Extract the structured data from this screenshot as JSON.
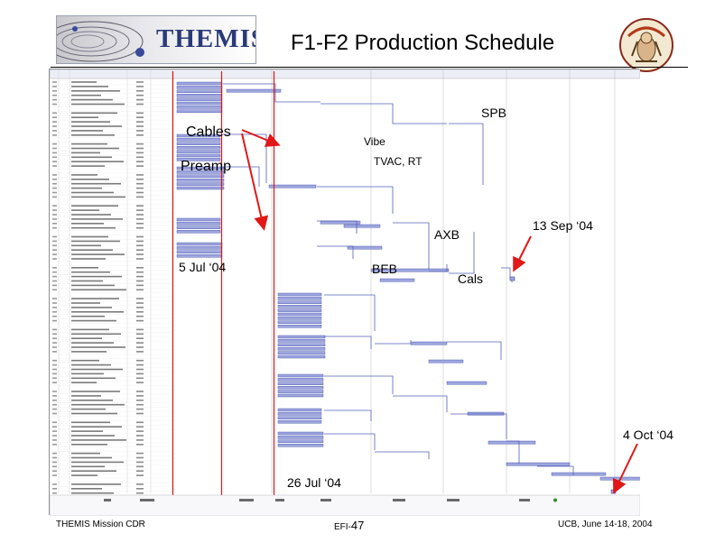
{
  "slide": {
    "title": "F1-F2 Production Schedule",
    "logo_text": "THEMIS",
    "footer": {
      "left": "THEMIS Mission CDR",
      "center_prefix": "EFI-",
      "center_number": "47",
      "right": "UCB, June 14-18, 2004"
    }
  },
  "annotations": {
    "cables": "Cables",
    "preamp": "Preamp",
    "vibe": "Vibe",
    "spb": "SPB",
    "tvac": "TVAC, RT",
    "axb": "AXB",
    "beb": "BEB",
    "cals": "Cals",
    "date_jul5": "5 Jul ‘04",
    "date_sep13": "13 Sep ‘04",
    "date_oct4": "4 Oct ‘04",
    "date_jul26": "26 Jul ‘04"
  },
  "colors": {
    "task_bar": "#9ea6de",
    "task_bar_edge": "#3a4aa8",
    "link_line": "#5560b8",
    "marker_red": "#e01818",
    "grid": "#d8d8d8"
  }
}
